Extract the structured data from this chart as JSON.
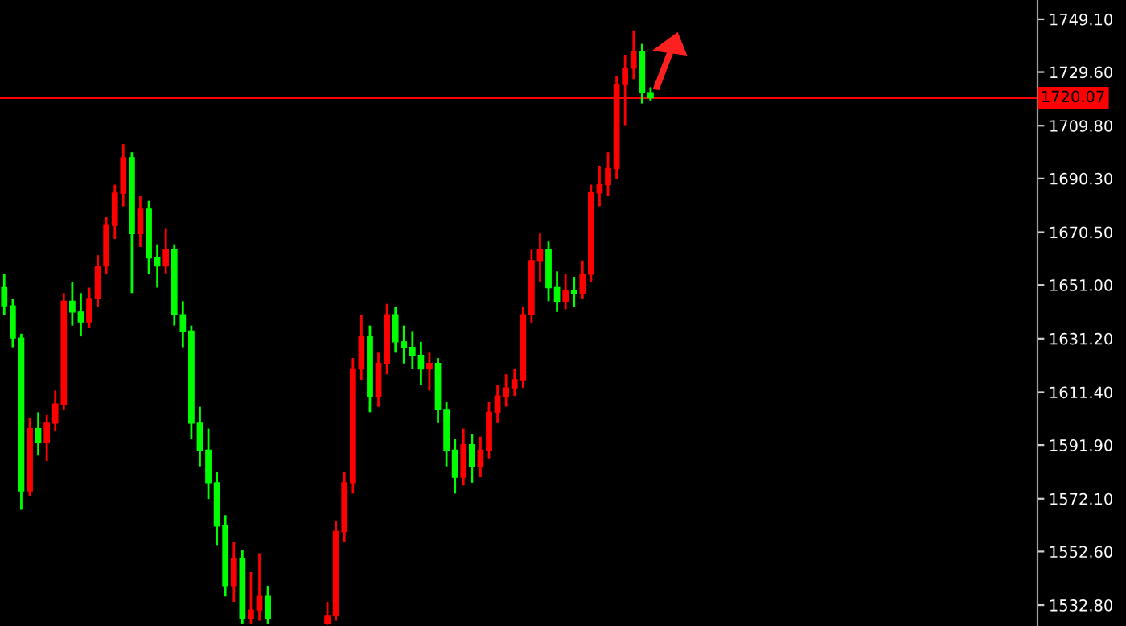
{
  "chart_data": {
    "type": "candlestick",
    "categories": [
      null,
      null,
      null,
      null,
      null,
      null,
      null,
      null,
      null,
      null,
      null,
      null,
      null,
      null,
      null,
      null,
      null,
      null,
      null,
      null,
      null,
      null,
      null,
      null,
      null,
      null,
      null,
      null,
      null,
      null,
      null,
      null,
      null,
      null,
      null,
      null,
      null,
      null,
      null,
      null,
      null,
      null,
      null,
      null,
      null,
      null,
      null,
      null,
      null,
      null,
      null,
      null,
      null,
      null,
      null,
      null,
      null,
      null,
      null,
      null,
      null,
      null,
      null,
      null,
      null,
      null,
      null,
      null,
      null,
      null,
      null,
      null,
      null,
      null,
      null,
      null,
      null,
      null,
      null,
      null,
      null,
      null,
      null,
      null,
      null,
      null,
      null,
      null,
      null,
      null,
      null,
      null,
      null,
      null,
      null,
      null,
      null,
      null,
      null,
      null,
      null,
      null,
      null,
      null,
      null,
      null,
      null,
      null,
      null,
      null,
      null,
      null,
      null,
      null,
      null,
      null,
      null,
      null,
      null,
      null,
      null,
      null
    ],
    "ohlc": [
      [
        1650,
        1655,
        1640,
        1643.3
      ],
      [
        1643.3,
        1646,
        1628,
        1631.4
      ],
      [
        1631.4,
        1633,
        1568,
        1575
      ],
      [
        1575,
        1602,
        1573,
        1598
      ],
      [
        1598,
        1604,
        1588,
        1592.8
      ],
      [
        1592.8,
        1603,
        1586,
        1600
      ],
      [
        1600,
        1612,
        1597,
        1607
      ],
      [
        1607,
        1648,
        1605,
        1645
      ],
      [
        1645,
        1652,
        1636,
        1641
      ],
      [
        1641,
        1648,
        1632,
        1637.4
      ],
      [
        1637.4,
        1650,
        1635,
        1646
      ],
      [
        1646,
        1662,
        1643,
        1658
      ],
      [
        1658,
        1676,
        1655,
        1673
      ],
      [
        1673,
        1688,
        1668,
        1684.9
      ],
      [
        1684.9,
        1703,
        1680,
        1698
      ],
      [
        1698,
        1700,
        1648,
        1670
      ],
      [
        1670,
        1684,
        1665,
        1679
      ],
      [
        1679,
        1682,
        1655,
        1661
      ],
      [
        1661,
        1666,
        1650,
        1658
      ],
      [
        1658,
        1672,
        1655,
        1664
      ],
      [
        1664,
        1666,
        1636,
        1640
      ],
      [
        1640,
        1645,
        1628,
        1634
      ],
      [
        1634,
        1636,
        1594,
        1600
      ],
      [
        1600,
        1606,
        1584,
        1590
      ],
      [
        1590,
        1598,
        1572,
        1578
      ],
      [
        1578,
        1582,
        1555,
        1562
      ],
      [
        1562,
        1566,
        1536,
        1540
      ],
      [
        1540,
        1556,
        1534,
        1550
      ],
      [
        1550,
        1553,
        1526,
        1528
      ],
      [
        1528,
        1545,
        1526,
        1531
      ],
      [
        1531,
        1552,
        1527,
        1536
      ],
      [
        1536,
        1540,
        1526,
        1528
      ],
      null,
      null,
      null,
      null,
      null,
      null,
      [
        1526,
        1534,
        1525.5,
        1529
      ],
      [
        1529,
        1564,
        1527,
        1560
      ],
      [
        1560,
        1582,
        1556,
        1578
      ],
      [
        1578,
        1624,
        1574,
        1620
      ],
      [
        1620,
        1640,
        1616,
        1632
      ],
      [
        1632,
        1636,
        1604,
        1610
      ],
      [
        1610,
        1626,
        1606,
        1622
      ],
      [
        1622,
        1644,
        1618,
        1640
      ],
      [
        1640,
        1643,
        1626,
        1630
      ],
      [
        1630,
        1636,
        1622,
        1628
      ],
      [
        1628,
        1634,
        1620,
        1625
      ],
      [
        1625,
        1630,
        1614,
        1620
      ],
      [
        1620,
        1626,
        1612,
        1622
      ],
      [
        1622,
        1624,
        1600,
        1605
      ],
      [
        1605,
        1608,
        1584,
        1590
      ],
      [
        1590,
        1594,
        1574,
        1580
      ],
      [
        1580,
        1598,
        1577,
        1592
      ],
      [
        1592,
        1596,
        1578,
        1584
      ],
      [
        1584,
        1595,
        1580,
        1590
      ],
      [
        1590,
        1608,
        1587,
        1604
      ],
      [
        1604,
        1614,
        1600,
        1610
      ],
      [
        1610,
        1618,
        1606,
        1613
      ],
      [
        1613,
        1620,
        1610,
        1616
      ],
      [
        1616,
        1643,
        1613,
        1640
      ],
      [
        1640,
        1664,
        1637,
        1660
      ],
      [
        1660,
        1670,
        1652,
        1664
      ],
      [
        1664,
        1667,
        1645,
        1650
      ],
      [
        1650,
        1656,
        1641,
        1645
      ],
      [
        1645,
        1655,
        1642,
        1649
      ],
      [
        1649,
        1654,
        1643,
        1648
      ],
      [
        1648,
        1660,
        1646,
        1655
      ],
      [
        1655,
        1688,
        1652,
        1685
      ],
      [
        1685,
        1695,
        1680,
        1688
      ],
      [
        1688,
        1700,
        1684,
        1694
      ],
      [
        1694,
        1728,
        1690,
        1725
      ],
      [
        1725,
        1736,
        1710,
        1731
      ],
      [
        1731,
        1745,
        1727,
        1737
      ],
      [
        1737,
        1740,
        1718,
        1722
      ],
      [
        1722,
        1724,
        1719,
        1720.07
      ],
      null,
      null,
      null,
      null,
      null,
      null,
      null,
      null,
      null,
      null,
      null,
      null,
      null,
      null,
      null,
      null,
      null,
      null,
      null,
      null,
      null,
      null,
      null,
      null,
      null,
      null,
      null,
      null,
      null,
      null,
      null,
      null,
      null,
      null,
      null,
      null,
      null,
      null,
      null,
      null,
      null,
      null,
      null,
      null,
      null
    ],
    "colors": [
      "#00ff00",
      "#00ff00",
      "#00ff00",
      "#ff0000",
      "#00ff00",
      "#ff0000",
      "#ff0000",
      "#ff0000",
      "#00ff00",
      "#00ff00",
      "#ff0000",
      "#ff0000",
      "#ff0000",
      "#ff0000",
      "#ff0000",
      "#00ff00",
      "#ff0000",
      "#00ff00",
      "#00ff00",
      "#ff0000",
      "#00ff00",
      "#00ff00",
      "#00ff00",
      "#00ff00",
      "#00ff00",
      "#00ff00",
      "#00ff00",
      "#ff0000",
      "#00ff00",
      "#ff0000",
      "#ff0000",
      "#00ff00",
      null,
      null,
      null,
      null,
      null,
      null,
      "#ff0000",
      "#ff0000",
      "#ff0000",
      "#ff0000",
      "#ff0000",
      "#00ff00",
      "#ff0000",
      "#ff0000",
      "#00ff00",
      "#00ff00",
      "#00ff00",
      "#00ff00",
      "#ff0000",
      "#00ff00",
      "#00ff00",
      "#00ff00",
      "#ff0000",
      "#00ff00",
      "#ff0000",
      "#ff0000",
      "#ff0000",
      "#ff0000",
      "#ff0000",
      "#ff0000",
      "#ff0000",
      "#ff0000",
      "#00ff00",
      "#00ff00",
      "#ff0000",
      "#00ff00",
      "#ff0000",
      "#ff0000",
      "#ff0000",
      "#ff0000",
      "#ff0000",
      "#ff0000",
      "#ff0000",
      "#00ff00",
      "#00ff00",
      null,
      null,
      null,
      null,
      null,
      null,
      null,
      null,
      null,
      null,
      null,
      null,
      null,
      null,
      null,
      null,
      null,
      null,
      null,
      null,
      null,
      null,
      null,
      null,
      null,
      null,
      null,
      null,
      null,
      null,
      null,
      null,
      null,
      null,
      null,
      null,
      null,
      null,
      null,
      null,
      null,
      null,
      null,
      null,
      null
    ],
    "ylim": [
      1525.1,
      1756.2
    ],
    "yticks": [
      {
        "value": 1749.1,
        "label": "1749.10"
      },
      {
        "value": 1729.6,
        "label": "1729.60"
      },
      {
        "value": 1709.8,
        "label": "1709.80"
      },
      {
        "value": 1690.3,
        "label": "1690.30"
      },
      {
        "value": 1670.5,
        "label": "1670.50"
      },
      {
        "value": 1651,
        "label": "1651.00"
      },
      {
        "value": 1631.2,
        "label": "1631.20"
      },
      {
        "value": 1611.4,
        "label": "1611.40"
      },
      {
        "value": 1591.9,
        "label": "1591.90"
      },
      {
        "value": 1572.1,
        "label": "1572.10"
      },
      {
        "value": 1552.6,
        "label": "1552.60"
      },
      {
        "value": 1532.8,
        "label": "1532.80"
      }
    ],
    "ref_lines": [
      {
        "axis": "y",
        "value": 1720.07,
        "label": "1720.07",
        "color": "#ff0000"
      }
    ],
    "tick_labels": "y",
    "grid": false
  }
}
